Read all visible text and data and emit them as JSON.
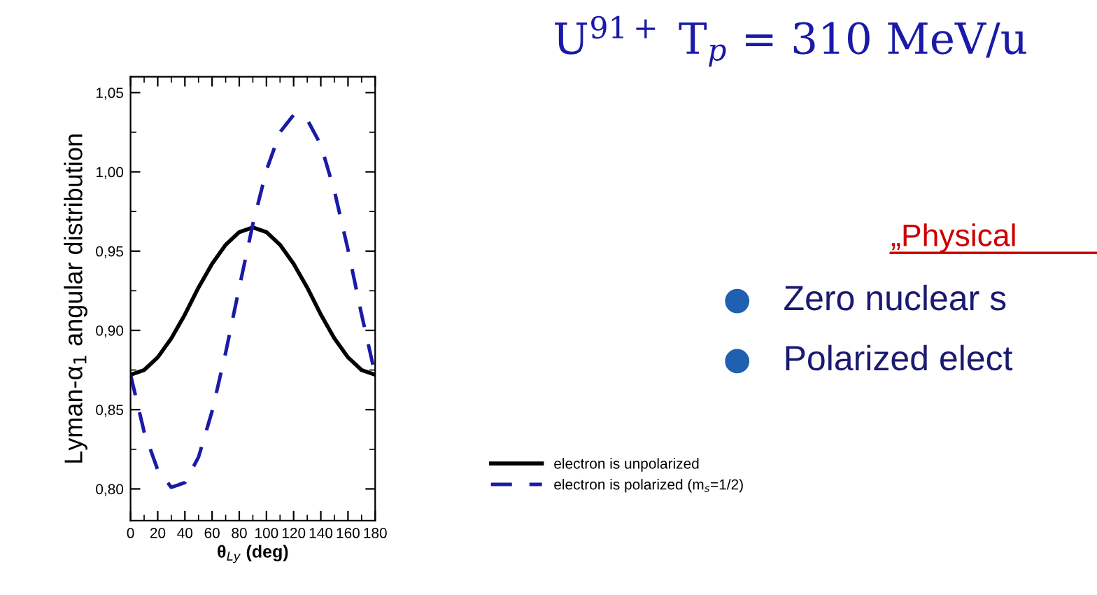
{
  "chart_data": {
    "type": "line",
    "title": "U$^{91+}$ T$_{p}$ = 310 MeV/u",
    "xlabel": "θ$_{Ly}$ (deg)",
    "ylabel": "Lyman-α$_{1}$ angular distribution",
    "x": [
      0,
      10,
      20,
      30,
      40,
      50,
      60,
      70,
      80,
      90,
      100,
      110,
      120,
      130,
      140,
      150,
      160,
      170,
      180
    ],
    "series": [
      {
        "name": "electron is unpolarized",
        "color": "#000000",
        "line_style": "solid",
        "values": [
          0.872,
          0.875,
          0.883,
          0.895,
          0.91,
          0.927,
          0.942,
          0.954,
          0.962,
          0.965,
          0.962,
          0.954,
          0.942,
          0.927,
          0.91,
          0.895,
          0.883,
          0.875,
          0.872
        ]
      },
      {
        "name": "electron is polarized (m$_{s}$=1/2)",
        "color": "#1a1aa8",
        "line_style": "dashed",
        "values": [
          0.872,
          0.836,
          0.812,
          0.801,
          0.804,
          0.82,
          0.849,
          0.886,
          0.927,
          0.967,
          1.001,
          1.025,
          1.036,
          1.033,
          1.017,
          0.988,
          0.951,
          0.91,
          0.872
        ]
      }
    ],
    "xlim": [
      0,
      180
    ],
    "xticks": [
      0,
      20,
      40,
      60,
      80,
      100,
      120,
      140,
      160,
      180
    ],
    "ylim": [
      0.78,
      1.06
    ],
    "yticks": [
      {
        "value": 0.8,
        "label": "0,80"
      },
      {
        "value": 0.85,
        "label": "0,85"
      },
      {
        "value": 0.9,
        "label": "0,90"
      },
      {
        "value": 0.95,
        "label": "0,95"
      },
      {
        "value": 1.0,
        "label": "1,00"
      },
      {
        "value": 1.05,
        "label": "1,05"
      }
    ],
    "legend": "bottom right",
    "marker": "none",
    "grid": false,
    "annotations": [
      "„Physical",
      "Zero nuclear s",
      "Polarized elect"
    ]
  }
}
